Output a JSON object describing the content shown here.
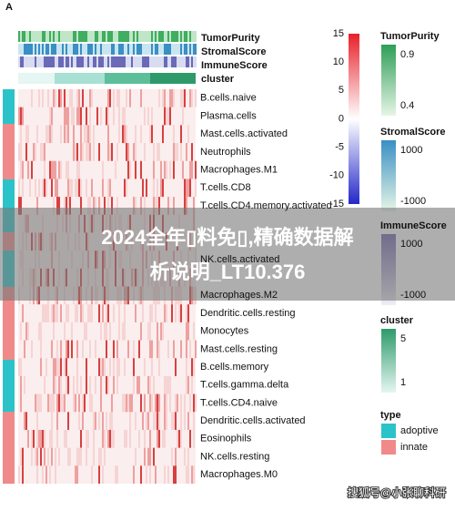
{
  "panel_label": "A",
  "annotations": [
    "TumorPurity",
    "StromalScore",
    "ImmuneScore",
    "cluster"
  ],
  "rows": [
    {
      "label": "B.cells.naive",
      "slot": 0
    },
    {
      "label": "Plasma.cells",
      "slot": 1
    },
    {
      "label": "Mast.cells.activated",
      "slot": 2
    },
    {
      "label": "Neutrophils",
      "slot": 3
    },
    {
      "label": "Macrophages.M1",
      "slot": 4
    },
    {
      "label": "T.cells.CD8",
      "slot": 5
    },
    {
      "label": "T.cells.CD4.memory.activated",
      "slot": 6
    },
    {
      "label": "NK.cells.activated",
      "slot": 9
    },
    {
      "label": "Macrophages.M2",
      "slot": 11
    },
    {
      "label": "Dendritic.cells.resting",
      "slot": 12
    },
    {
      "label": "Monocytes",
      "slot": 13
    },
    {
      "label": "Mast.cells.resting",
      "slot": 14
    },
    {
      "label": "B.cells.memory",
      "slot": 15
    },
    {
      "label": "T.cells.gamma.delta",
      "slot": 16
    },
    {
      "label": "T.cells.CD4.naive",
      "slot": 17
    },
    {
      "label": "Dendritic.cells.activated",
      "slot": 18
    },
    {
      "label": "Eosinophils",
      "slot": 19
    },
    {
      "label": "NK.cells.resting",
      "slot": 20
    },
    {
      "label": "Macrophages.M0",
      "slot": 21
    }
  ],
  "colorbar_ticks": [
    15,
    10,
    5,
    0,
    -5,
    -10,
    -15
  ],
  "legends": [
    {
      "title": "TumorPurity",
      "labels": [
        "0.9",
        "0.4"
      ]
    },
    {
      "title": "StromalScore",
      "labels": [
        "1000",
        "-1000"
      ]
    },
    {
      "title": "ImmuneScore",
      "labels": [
        "1000",
        "-1000"
      ]
    },
    {
      "title": "cluster",
      "labels": [
        "5",
        "1"
      ]
    },
    {
      "title": "type",
      "labels": [
        "adoptive",
        "innate"
      ]
    }
  ],
  "banner": {
    "line1": "2024全年▯料免▯,精确数据解",
    "line2": "析说明_LT10.376"
  },
  "watermark": "搜狐号@小张聊科研"
}
